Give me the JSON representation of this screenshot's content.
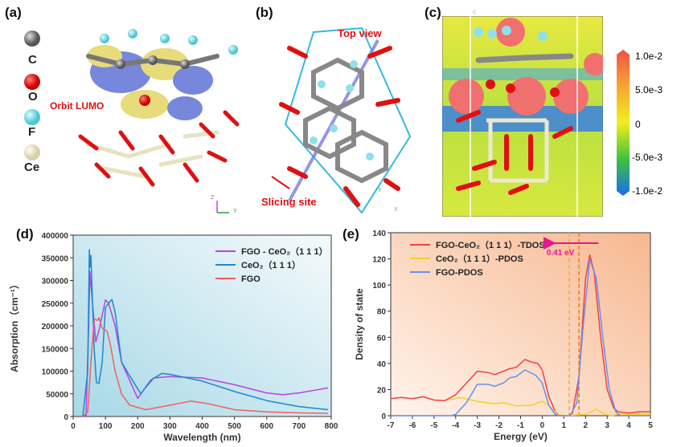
{
  "panels": {
    "a": {
      "label": "(a)",
      "atoms": [
        "C",
        "O",
        "F",
        "Ce"
      ],
      "annotation": "Orbit LUMO",
      "axis_labels": [
        "Z",
        "Y"
      ]
    },
    "b": {
      "label": "(b)",
      "annotations": [
        "Top view",
        "Slicing site"
      ],
      "axis_labels": [
        "Y",
        "X"
      ]
    },
    "c": {
      "label": "(c)",
      "axis_label": "c",
      "colorbar": {
        "ticks": [
          "1.0e-2",
          "5.0e-3",
          "0",
          "-5.0e-3",
          "-1.0e-2"
        ],
        "colors": [
          "#f0504a",
          "#f7a530",
          "#f2ee20",
          "#3cc23c",
          "#1a6cf0"
        ]
      }
    },
    "d": {
      "label": "(d)"
    },
    "e": {
      "label": "(e)"
    }
  },
  "chart_data": [
    {
      "type": "line",
      "xlabel": "Wavelength (nm)",
      "ylabel": "Absorption（cm⁻¹）",
      "xlim": [
        0,
        800
      ],
      "ylim": [
        0,
        400000
      ],
      "xticks": [
        "0",
        "100",
        "200",
        "300",
        "400",
        "500",
        "600",
        "700",
        "800"
      ],
      "yticks": [
        "0",
        "50000",
        "100000",
        "150000",
        "200000",
        "250000",
        "300000",
        "350000",
        "400000"
      ],
      "legend_position": "top-right",
      "series": [
        {
          "name": "FGO - CeO₂（1 1 1）",
          "color": "#c040e0",
          "points": [
            [
              25,
              0
            ],
            [
              40,
              2000
            ],
            [
              48,
              200000
            ],
            [
              52,
              320000
            ],
            [
              55,
              290000
            ],
            [
              60,
              250000
            ],
            [
              70,
              165000
            ],
            [
              80,
              190000
            ],
            [
              100,
              257000
            ],
            [
              110,
              250000
            ],
            [
              130,
              200000
            ],
            [
              150,
              120000
            ],
            [
              175,
              80000
            ],
            [
              200,
              40000
            ],
            [
              220,
              60000
            ],
            [
              250,
              85000
            ],
            [
              300,
              88000
            ],
            [
              400,
              85000
            ],
            [
              500,
              70000
            ],
            [
              600,
              52000
            ],
            [
              650,
              48000
            ],
            [
              700,
              52000
            ],
            [
              790,
              63000
            ]
          ]
        },
        {
          "name": "CeO₂（1 1 1）",
          "color": "#1e88d0",
          "points": [
            [
              30,
              0
            ],
            [
              45,
              100000
            ],
            [
              50,
              368000
            ],
            [
              53,
              330000
            ],
            [
              55,
              355000
            ],
            [
              60,
              250000
            ],
            [
              65,
              150000
            ],
            [
              72,
              75000
            ],
            [
              80,
              73000
            ],
            [
              90,
              120000
            ],
            [
              100,
              240000
            ],
            [
              110,
              250000
            ],
            [
              120,
              258000
            ],
            [
              130,
              230000
            ],
            [
              150,
              120000
            ],
            [
              175,
              90000
            ],
            [
              210,
              50000
            ],
            [
              240,
              80000
            ],
            [
              275,
              95000
            ],
            [
              300,
              93000
            ],
            [
              400,
              78000
            ],
            [
              500,
              55000
            ],
            [
              600,
              35000
            ],
            [
              700,
              22000
            ],
            [
              790,
              15000
            ]
          ]
        },
        {
          "name": "FGO",
          "color": "#f06060",
          "points": [
            [
              30,
              0
            ],
            [
              45,
              10000
            ],
            [
              55,
              120000
            ],
            [
              65,
              215000
            ],
            [
              75,
              212000
            ],
            [
              80,
              218000
            ],
            [
              90,
              195000
            ],
            [
              105,
              188000
            ],
            [
              115,
              160000
            ],
            [
              130,
              100000
            ],
            [
              150,
              50000
            ],
            [
              175,
              25000
            ],
            [
              225,
              15000
            ],
            [
              300,
              25000
            ],
            [
              365,
              34000
            ],
            [
              420,
              28000
            ],
            [
              500,
              15000
            ],
            [
              600,
              10000
            ],
            [
              700,
              8000
            ],
            [
              790,
              7000
            ]
          ]
        }
      ]
    },
    {
      "type": "line",
      "xlabel": "Energy (eV)",
      "ylabel": "Density of state",
      "xlim": [
        -7,
        5
      ],
      "ylim": [
        0,
        140
      ],
      "xticks": [
        "-7",
        "-6",
        "-5",
        "-4",
        "-3",
        "-2",
        "-1",
        "0",
        "1",
        "2",
        "3",
        "4",
        "5"
      ],
      "yticks": [
        "0",
        "20",
        "40",
        "60",
        "80",
        "100",
        "120",
        "140"
      ],
      "legend_position": "top-left",
      "annotation": {
        "text": "0.41 eV",
        "arrow_from": 2.6,
        "arrow_to": 0.35,
        "y": 132,
        "color": "#e8168c"
      },
      "dashed_lines": [
        1.25,
        1.7
      ],
      "series": [
        {
          "name": "FGO-CeO₂（1 1 1）-TDOS",
          "color": "#f04040",
          "points": [
            [
              -7,
              13
            ],
            [
              -6.5,
              14
            ],
            [
              -6,
              13
            ],
            [
              -5.5,
              14.5
            ],
            [
              -5,
              12
            ],
            [
              -4.5,
              11.5
            ],
            [
              -4,
              16
            ],
            [
              -3.5,
              25
            ],
            [
              -3,
              34
            ],
            [
              -2.5,
              33
            ],
            [
              -2.2,
              31.5
            ],
            [
              -1.8,
              34
            ],
            [
              -1.5,
              36
            ],
            [
              -1.2,
              37
            ],
            [
              -0.8,
              43
            ],
            [
              -0.5,
              41
            ],
            [
              -0.2,
              40
            ],
            [
              0,
              35
            ],
            [
              0.3,
              15
            ],
            [
              0.6,
              3
            ],
            [
              0.8,
              0
            ],
            [
              1.2,
              0
            ],
            [
              1.4,
              2
            ],
            [
              1.7,
              30
            ],
            [
              2,
              105
            ],
            [
              2.2,
              123
            ],
            [
              2.4,
              110
            ],
            [
              2.7,
              60
            ],
            [
              3,
              20
            ],
            [
              3.3,
              6
            ],
            [
              3.5,
              3
            ],
            [
              4,
              2
            ],
            [
              4.5,
              3
            ],
            [
              5,
              3
            ]
          ]
        },
        {
          "name": "CeO₂（1 1 1）-PDOS",
          "color": "#f5d020",
          "points": [
            [
              -4.3,
              12
            ],
            [
              -3.8,
              14
            ],
            [
              -3,
              11
            ],
            [
              -2.2,
              9
            ],
            [
              -1.8,
              10
            ],
            [
              -1.2,
              7.5
            ],
            [
              -0.5,
              8
            ],
            [
              0,
              11
            ],
            [
              0.3,
              8
            ],
            [
              0.7,
              1
            ],
            [
              1,
              0
            ],
            [
              2,
              1
            ],
            [
              2.5,
              5
            ],
            [
              2.9,
              1
            ],
            [
              3.2,
              0
            ],
            [
              3.5,
              1
            ],
            [
              5,
              1
            ]
          ]
        },
        {
          "name": "FGO-PDOS",
          "color": "#6a8ff0",
          "points": [
            [
              -7,
              0
            ],
            [
              -4.2,
              0
            ],
            [
              -4,
              1
            ],
            [
              -3.5,
              10
            ],
            [
              -3,
              24
            ],
            [
              -2.5,
              24
            ],
            [
              -2.2,
              22.5
            ],
            [
              -1.8,
              25
            ],
            [
              -1.5,
              29
            ],
            [
              -1.2,
              30
            ],
            [
              -0.8,
              35
            ],
            [
              -0.3,
              31
            ],
            [
              0,
              25
            ],
            [
              0.3,
              8
            ],
            [
              0.6,
              1
            ],
            [
              0.8,
              0
            ],
            [
              1.3,
              0
            ],
            [
              1.6,
              10
            ],
            [
              1.9,
              70
            ],
            [
              2.2,
              120
            ],
            [
              2.5,
              105
            ],
            [
              2.8,
              60
            ],
            [
              3.1,
              20
            ],
            [
              3.4,
              3
            ],
            [
              3.6,
              0
            ],
            [
              5,
              0
            ]
          ]
        }
      ]
    }
  ]
}
